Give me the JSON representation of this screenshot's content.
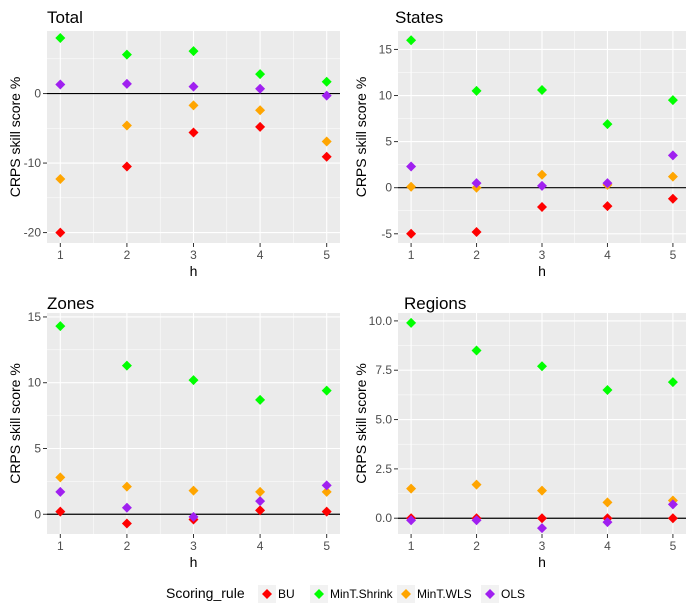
{
  "chart_data": [
    {
      "type": "scatter",
      "title": "Total",
      "xlabel": "h",
      "ylabel": "CRPS skill score %",
      "x": [
        1,
        2,
        3,
        4,
        5
      ],
      "xlim": [
        0.8,
        5.2
      ],
      "ylim": [
        -21.5,
        9.0
      ],
      "yticks": [
        -20,
        -10,
        0
      ],
      "hline": 0,
      "series": [
        {
          "name": "BU",
          "values": [
            -20.0,
            -10.5,
            -5.6,
            -4.8,
            -9.1
          ]
        },
        {
          "name": "MinT.Shrink",
          "values": [
            8.0,
            5.6,
            6.1,
            2.8,
            1.7
          ]
        },
        {
          "name": "MinT.WLS",
          "values": [
            -12.3,
            -4.6,
            -1.7,
            -2.4,
            -6.9
          ]
        },
        {
          "name": "OLS",
          "values": [
            1.3,
            1.4,
            1.0,
            0.7,
            -0.3
          ]
        }
      ]
    },
    {
      "type": "scatter",
      "title": "States",
      "xlabel": "h",
      "ylabel": "CRPS skill score %",
      "x": [
        1,
        2,
        3,
        4,
        5
      ],
      "xlim": [
        0.8,
        5.2
      ],
      "ylim": [
        -6.0,
        17.0
      ],
      "yticks": [
        -5,
        0,
        5,
        10,
        15
      ],
      "hline": 0,
      "series": [
        {
          "name": "BU",
          "values": [
            -5.0,
            -4.8,
            -2.1,
            -2.0,
            -1.2
          ]
        },
        {
          "name": "MinT.Shrink",
          "values": [
            16.0,
            10.5,
            10.6,
            6.9,
            9.5
          ]
        },
        {
          "name": "MinT.WLS",
          "values": [
            0.1,
            0.0,
            1.4,
            0.3,
            1.2
          ]
        },
        {
          "name": "OLS",
          "values": [
            2.3,
            0.5,
            0.2,
            0.5,
            3.5
          ]
        }
      ]
    },
    {
      "type": "scatter",
      "title": "Zones",
      "xlabel": "h",
      "ylabel": "CRPS skill score %",
      "x": [
        1,
        2,
        3,
        4,
        5
      ],
      "xlim": [
        0.8,
        5.2
      ],
      "ylim": [
        -1.5,
        15.3
      ],
      "yticks": [
        0,
        5,
        10,
        15
      ],
      "hline": 0,
      "series": [
        {
          "name": "BU",
          "values": [
            0.2,
            -0.7,
            -0.4,
            0.3,
            0.2
          ]
        },
        {
          "name": "MinT.Shrink",
          "values": [
            14.3,
            11.3,
            10.2,
            8.7,
            9.4
          ]
        },
        {
          "name": "MinT.WLS",
          "values": [
            2.8,
            2.1,
            1.8,
            1.7,
            1.7
          ]
        },
        {
          "name": "OLS",
          "values": [
            1.7,
            0.5,
            -0.2,
            1.0,
            2.2
          ]
        }
      ]
    },
    {
      "type": "scatter",
      "title": "Regions",
      "xlabel": "h",
      "ylabel": "CRPS skill score %",
      "x": [
        1,
        2,
        3,
        4,
        5
      ],
      "xlim": [
        0.8,
        5.2
      ],
      "ylim": [
        -0.8,
        10.4
      ],
      "yticks": [
        0.0,
        2.5,
        5.0,
        7.5,
        10.0
      ],
      "ytick_labels": [
        "0.0",
        "2.5",
        "5.0",
        "7.5",
        "10.0"
      ],
      "hline": 0,
      "series": [
        {
          "name": "BU",
          "values": [
            0.0,
            0.0,
            0.0,
            0.0,
            0.0
          ]
        },
        {
          "name": "MinT.Shrink",
          "values": [
            9.9,
            8.5,
            7.7,
            6.5,
            6.9
          ]
        },
        {
          "name": "MinT.WLS",
          "values": [
            1.5,
            1.7,
            1.4,
            0.8,
            0.9
          ]
        },
        {
          "name": "OLS",
          "values": [
            -0.1,
            -0.1,
            -0.5,
            -0.2,
            0.7
          ]
        }
      ]
    }
  ],
  "legend": {
    "title": "Scoring_rule",
    "position": "bottom",
    "items": [
      {
        "label": "BU",
        "color": "#ff0000"
      },
      {
        "label": "MinT.Shrink",
        "color": "#00ff00"
      },
      {
        "label": "MinT.WLS",
        "color": "#ffa500"
      },
      {
        "label": "OLS",
        "color": "#a020f0"
      }
    ]
  },
  "colors": {
    "BU": "#ff0000",
    "MinT.Shrink": "#00ff00",
    "MinT.WLS": "#ffa500",
    "OLS": "#a020f0",
    "panel_bg": "#ebebeb",
    "grid": "#ffffff"
  }
}
